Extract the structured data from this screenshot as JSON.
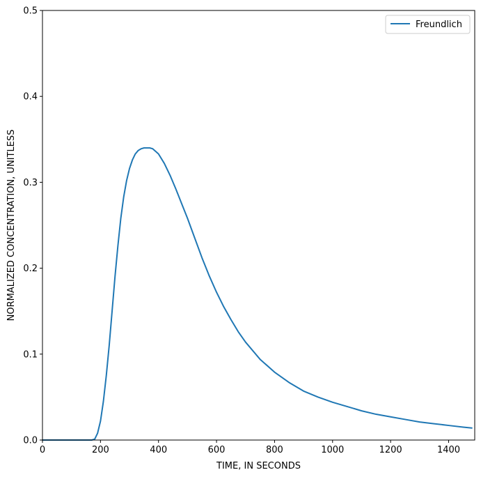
{
  "chart_data": {
    "type": "line",
    "title": "",
    "xlabel": "TIME, IN SECONDS",
    "ylabel": "NORMALIZED CONCENTRATION, UNITLESS",
    "xlim": [
      0,
      1490
    ],
    "ylim": [
      0,
      0.5
    ],
    "xticks": [
      0,
      200,
      400,
      600,
      800,
      1000,
      1200,
      1400
    ],
    "xtick_labels": [
      "0",
      "200",
      "400",
      "600",
      "800",
      "1000",
      "1200",
      "1400"
    ],
    "yticks": [
      0.0,
      0.1,
      0.2,
      0.3,
      0.4,
      0.5
    ],
    "ytick_labels": [
      "0.0",
      "0.1",
      "0.2",
      "0.3",
      "0.4",
      "0.5"
    ],
    "grid": false,
    "legend_position": "top-right",
    "series": [
      {
        "name": "Freundlich",
        "color": "#1f77b4",
        "x": [
          0,
          100,
          170,
          180,
          190,
          200,
          210,
          220,
          230,
          240,
          250,
          260,
          270,
          280,
          290,
          300,
          310,
          320,
          330,
          340,
          350,
          360,
          370,
          380,
          390,
          400,
          420,
          440,
          460,
          480,
          500,
          525,
          550,
          575,
          600,
          625,
          650,
          675,
          700,
          750,
          800,
          850,
          900,
          950,
          1000,
          1050,
          1100,
          1150,
          1200,
          1250,
          1300,
          1350,
          1400,
          1450,
          1480
        ],
        "y": [
          0,
          0,
          0,
          0.001,
          0.008,
          0.022,
          0.045,
          0.075,
          0.11,
          0.15,
          0.19,
          0.226,
          0.258,
          0.283,
          0.302,
          0.316,
          0.326,
          0.333,
          0.337,
          0.339,
          0.34,
          0.34,
          0.34,
          0.339,
          0.336,
          0.333,
          0.322,
          0.308,
          0.292,
          0.275,
          0.258,
          0.235,
          0.212,
          0.191,
          0.172,
          0.155,
          0.14,
          0.126,
          0.114,
          0.094,
          0.079,
          0.067,
          0.057,
          0.05,
          0.044,
          0.039,
          0.034,
          0.03,
          0.027,
          0.024,
          0.021,
          0.019,
          0.017,
          0.015,
          0.014
        ]
      }
    ]
  }
}
